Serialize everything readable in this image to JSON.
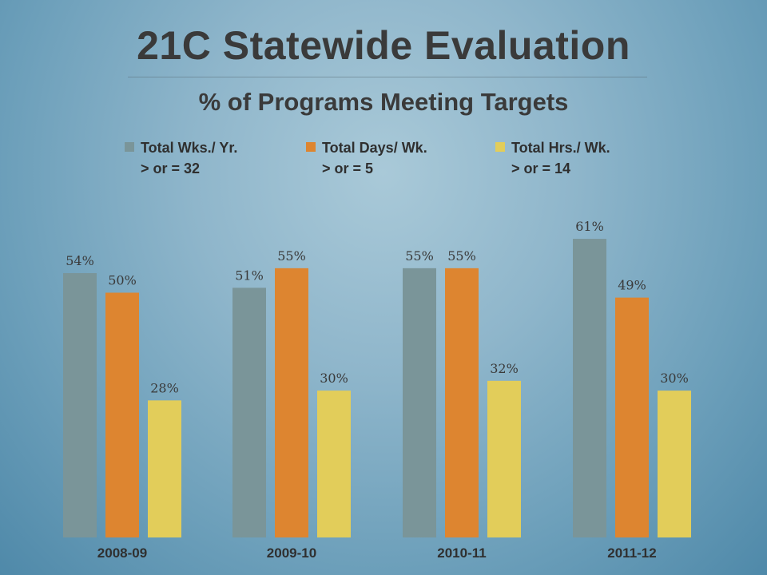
{
  "slide_title": "21C Statewide Evaluation",
  "chart_data": {
    "type": "bar",
    "title": "% of Programs Meeting Targets",
    "categories": [
      "2008-09",
      "2009-10",
      "2010-11",
      "2011-12"
    ],
    "series": [
      {
        "name": "Total Wks./ Yr.",
        "subtitle": "> or = 32",
        "color": "#7a9599",
        "values": [
          54,
          51,
          55,
          61
        ],
        "labels": [
          "54%",
          "51%",
          "55%",
          "61%"
        ]
      },
      {
        "name": "Total Days/ Wk.",
        "subtitle": "> or = 5",
        "color": "#dd8530",
        "values": [
          50,
          55,
          55,
          49
        ],
        "labels": [
          "50%",
          "55%",
          "55%",
          "49%"
        ]
      },
      {
        "name": "Total Hrs./ Wk.",
        "subtitle": "> or = 14",
        "color": "#e2cd5a",
        "values": [
          28,
          30,
          32,
          30
        ],
        "labels": [
          "28%",
          "30%",
          "32%",
          "30%"
        ]
      }
    ],
    "legend_position": "top",
    "grid": false,
    "ylim": [
      0,
      100
    ]
  }
}
